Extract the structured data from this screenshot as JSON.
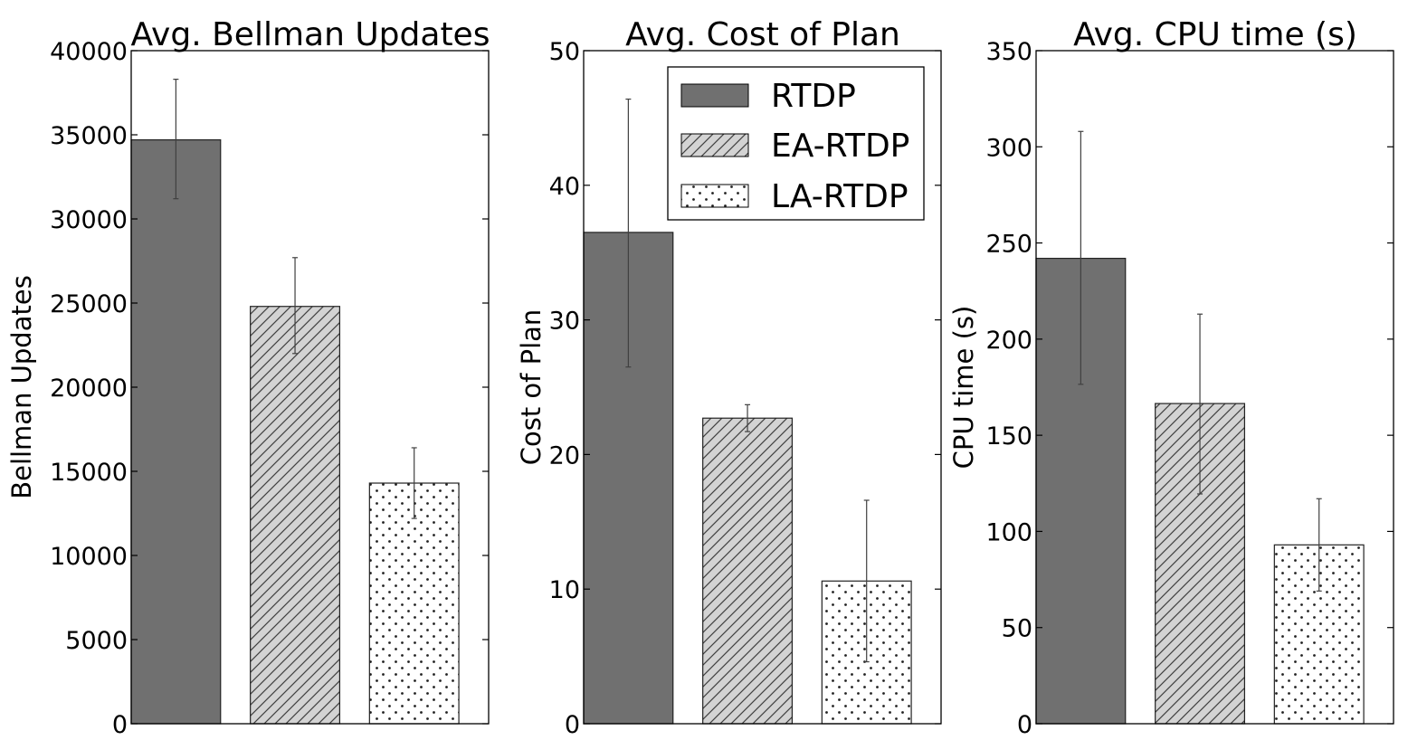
{
  "chart_data": [
    {
      "type": "bar",
      "title": "Avg. Bellman Updates",
      "ylabel": "Bellman Updates",
      "xlabel": "",
      "ylim": [
        0,
        40000
      ],
      "yticks": [
        0,
        5000,
        10000,
        15000,
        20000,
        25000,
        30000,
        35000,
        40000
      ],
      "series": [
        {
          "name": "RTDP",
          "value": 34700,
          "error": [
            31200,
            38300
          ]
        },
        {
          "name": "EA-RTDP",
          "value": 24800,
          "error": [
            22000,
            27700
          ]
        },
        {
          "name": "LA-RTDP",
          "value": 14300,
          "error": [
            12200,
            16400
          ]
        }
      ]
    },
    {
      "type": "bar",
      "title": "Avg. Cost of Plan",
      "ylabel": "Cost of Plan",
      "xlabel": "",
      "ylim": [
        0,
        50
      ],
      "yticks": [
        0,
        10,
        20,
        30,
        40,
        50
      ],
      "series": [
        {
          "name": "RTDP",
          "value": 36.5,
          "error": [
            26.5,
            46.4
          ]
        },
        {
          "name": "EA-RTDP",
          "value": 22.7,
          "error": [
            21.7,
            23.7
          ]
        },
        {
          "name": "LA-RTDP",
          "value": 10.6,
          "error": [
            4.6,
            16.6
          ]
        }
      ]
    },
    {
      "type": "bar",
      "title": "Avg. CPU time (s)",
      "ylabel": "CPU time (s)",
      "xlabel": "",
      "ylim": [
        0,
        350
      ],
      "yticks": [
        0,
        50,
        100,
        150,
        200,
        250,
        300,
        350
      ],
      "series": [
        {
          "name": "RTDP",
          "value": 242,
          "error": [
            176.5,
            308
          ]
        },
        {
          "name": "EA-RTDP",
          "value": 166.5,
          "error": [
            119.5,
            213
          ]
        },
        {
          "name": "LA-RTDP",
          "value": 93,
          "error": [
            69,
            117
          ]
        }
      ]
    }
  ],
  "legend": {
    "placement": "top-right of middle panel",
    "entries": [
      {
        "label": "RTDP",
        "style": "solid"
      },
      {
        "label": "EA-RTDP",
        "style": "hatch"
      },
      {
        "label": "LA-RTDP",
        "style": "dots"
      }
    ]
  },
  "colors": {
    "rtdp_fill": "#707070",
    "hatch_fill": "#d3d3d3",
    "dots_fill": "#ffffff",
    "error_bar": "#404040",
    "axes": "#000000"
  }
}
